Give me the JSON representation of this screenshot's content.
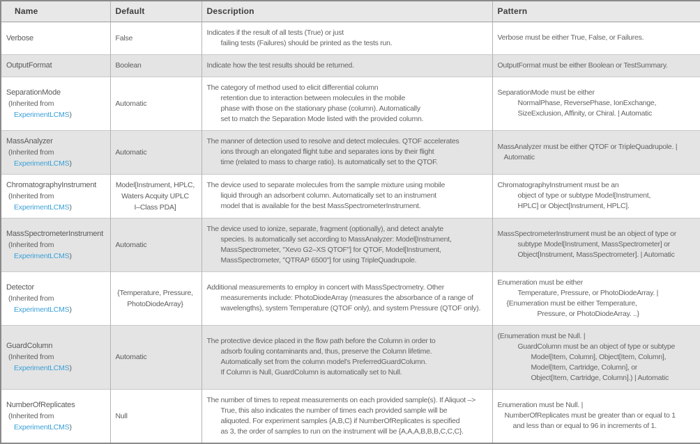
{
  "colors": {
    "link": "#3aa0d8",
    "stripe_row_bg": "#e4e4e4",
    "header_bg": "#e8e8e8",
    "header_text": "#3d3d3d",
    "body_text": "#5c5c5c"
  },
  "table": {
    "columns": [
      {
        "label": "Name"
      },
      {
        "label": "Default"
      },
      {
        "label": "Description"
      },
      {
        "label": "Pattern"
      }
    ],
    "inherited_prefix": "(Inherited from",
    "inherited_link": "ExperimentLCMS",
    "inherited_suffix": ")",
    "rows": [
      {
        "name": "Verbose",
        "inherited": false,
        "default_lines": [
          "False"
        ],
        "description_lines": [
          {
            "indent": 0,
            "text": "Indicates if the result of all tests (True) or just"
          },
          {
            "indent": 20,
            "text": "failing tests (Failures) should be printed as the tests run."
          }
        ],
        "pattern_lines": [
          {
            "indent": 0,
            "text": "Verbose must be either True, False, or Failures."
          }
        ]
      },
      {
        "name": "OutputFormat",
        "inherited": false,
        "default_lines": [
          "Boolean"
        ],
        "description_lines": [
          {
            "indent": 0,
            "text": "Indicate how the test results should be returned."
          }
        ],
        "pattern_lines": [
          {
            "indent": 0,
            "text": "OutputFormat must be either Boolean or TestSummary."
          }
        ]
      },
      {
        "name": "SeparationMode",
        "inherited": true,
        "default_lines": [
          "Automatic"
        ],
        "description_lines": [
          {
            "indent": 0,
            "text": "The category of method used to elicit differential column"
          },
          {
            "indent": 20,
            "text": "retention due to interaction between molecules in the mobile"
          },
          {
            "indent": 20,
            "text": "phase with those on the stationary phase (column). Automatically"
          },
          {
            "indent": 20,
            "text": "set to match the Separation Mode listed with the provided column."
          }
        ],
        "pattern_lines": [
          {
            "indent": 0,
            "text": "SeparationMode must be either"
          },
          {
            "indent": 29,
            "text": "NormalPhase, ReversePhase, IonExchange,"
          },
          {
            "indent": 29,
            "text": "SizeExclusion, Affinity, or Chiral. | Automatic"
          }
        ]
      },
      {
        "name": "MassAnalyzer",
        "inherited": true,
        "default_lines": [
          "Automatic"
        ],
        "description_lines": [
          {
            "indent": 0,
            "text": "The manner of detection used to resolve and detect molecules. QTOF accelerates"
          },
          {
            "indent": 20,
            "text": "ions through an elongated flight tube and separates ions by their flight"
          },
          {
            "indent": 20,
            "text": "time (related to mass to charge ratio). Is automatically set to the QTOF."
          }
        ],
        "pattern_lines": [
          {
            "indent": 0,
            "text": "MassAnalyzer must be either QTOF or TripleQuadrupole. |"
          },
          {
            "indent": 9,
            "text": "Automatic"
          }
        ]
      },
      {
        "name": "ChromatographyInstrument",
        "inherited": true,
        "default_lines": [
          "Model[Instrument, HPLC,",
          "Waters Acquity UPLC",
          "I–Class PDA]"
        ],
        "description_lines": [
          {
            "indent": 0,
            "text": "The device used to separate molecules from the sample mixture using mobile"
          },
          {
            "indent": 20,
            "text": "liquid through an adsorbent column. Automatically set to an instrument"
          },
          {
            "indent": 20,
            "text": "model that is available for the best MassSpectrometerInstrument."
          }
        ],
        "pattern_lines": [
          {
            "indent": 0,
            "text": "ChromatographyInstrument must be an"
          },
          {
            "indent": 29,
            "text": "object of type or subtype Model[Instrument,"
          },
          {
            "indent": 29,
            "text": "HPLC] or Object[Instrument, HPLC]."
          }
        ]
      },
      {
        "name": "MassSpectrometerInstrument",
        "inherited": true,
        "default_lines": [
          "Automatic"
        ],
        "description_lines": [
          {
            "indent": 0,
            "text": "The device used to ionize, separate, fragment (optionally), and detect analyte"
          },
          {
            "indent": 20,
            "text": "species. Is automatically set according to MassAnalyzer: Model[Instrument,"
          },
          {
            "indent": 20,
            "text": "MassSpectrometer, \"Xevo G2–XS QTOF\"] for QTOF, Model[Instrument,"
          },
          {
            "indent": 20,
            "text": "MassSpectrometer, \"QTRAP 6500\"] for using TripleQuadrupole."
          }
        ],
        "pattern_lines": [
          {
            "indent": 0,
            "text": "MassSpectrometerInstrument must be an object of type or"
          },
          {
            "indent": 29,
            "text": "subtype Model[Instrument, MassSpectrometer] or"
          },
          {
            "indent": 29,
            "text": "Object[Instrument, MassSpectrometer]. | Automatic"
          }
        ]
      },
      {
        "name": "Detector",
        "inherited": true,
        "default_lines": [
          "{Temperature, Pressure,",
          "PhotoDiodeArray}"
        ],
        "description_lines": [
          {
            "indent": 0,
            "text": "Additional measurements to employ in concert with MassSpectrometry. Other"
          },
          {
            "indent": 20,
            "text": "measurements include: PhotoDiodeArray (measures the absorbance of a range of"
          },
          {
            "indent": 20,
            "text": "wavelengths), system Temperature (QTOF only), and system Pressure (QTOF only)."
          }
        ],
        "pattern_lines": [
          {
            "indent": 0,
            "text": "Enumeration must be either"
          },
          {
            "indent": 29,
            "text": "Temperature, Pressure, or PhotoDiodeArray. |"
          },
          {
            "indent": 13,
            "text": "{Enumeration must be either Temperature,"
          },
          {
            "indent": 57,
            "text": "Pressure, or PhotoDiodeArray. ..}"
          }
        ]
      },
      {
        "name": "GuardColumn",
        "inherited": true,
        "default_lines": [
          "Automatic"
        ],
        "description_lines": [
          {
            "indent": 0,
            "text": "The protective device placed in the flow path before the Column in order to"
          },
          {
            "indent": 20,
            "text": "adsorb fouling contaminants and, thus, preserve the Column lifetime."
          },
          {
            "indent": 20,
            "text": "Automatically set from the column model's PreferredGuardColumn."
          },
          {
            "indent": 20,
            "text": "If Column is Null, GuardColumn is automatically set to Null."
          }
        ],
        "pattern_lines": [
          {
            "indent": 0,
            "text": "(Enumeration must be Null. |"
          },
          {
            "indent": 29,
            "text": "GuardColumn must be an object of type or subtype"
          },
          {
            "indent": 48,
            "text": "Model[Item, Column], Object[Item, Column],"
          },
          {
            "indent": 48,
            "text": "Model[Item, Cartridge, Column], or"
          },
          {
            "indent": 48,
            "text": "Object[Item, Cartridge, Column].) | Automatic"
          }
        ]
      },
      {
        "name": "NumberOfReplicates",
        "inherited": true,
        "default_lines": [
          "Null"
        ],
        "description_lines": [
          {
            "indent": 0,
            "text": "The number of times to repeat measurements on each provided sample(s). If Aliquot –>"
          },
          {
            "indent": 20,
            "text": "True, this also indicates the number of times each provided sample will be"
          },
          {
            "indent": 20,
            "text": "aliquoted. For experiment samples {A,B,C} if NumberOfReplicates is specified"
          },
          {
            "indent": 20,
            "text": "as 3, the order of samples to run on the instrument will be {A,A,A,B,B,B,C,C,C}."
          }
        ],
        "pattern_lines": [
          {
            "indent": 0,
            "text": "Enumeration must be Null. |"
          },
          {
            "indent": 10,
            "text": "NumberOfReplicates must be greater than or equal to 1"
          },
          {
            "indent": 22,
            "text": "and less than or equal to 96 in increments of 1."
          }
        ]
      }
    ]
  }
}
